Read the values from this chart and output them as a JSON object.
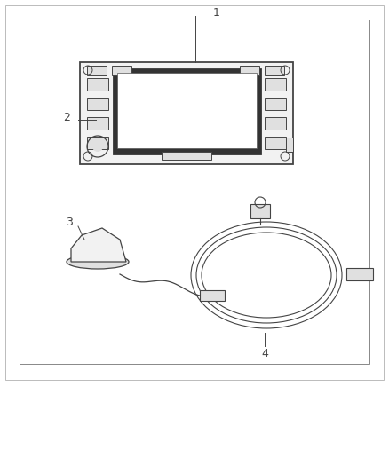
{
  "background_color": "#ffffff",
  "line_color": "#444444",
  "light_line": "#999999",
  "fill_light": "#f2f2f2",
  "fill_mid": "#e0e0e0",
  "fill_dark": "#c8c8c8",
  "screen_fill": "#e8e8e8",
  "label_1_text": "1",
  "label_2_text": "2",
  "label_3_text": "3",
  "label_4_text": "4",
  "label_fontsize": 9
}
